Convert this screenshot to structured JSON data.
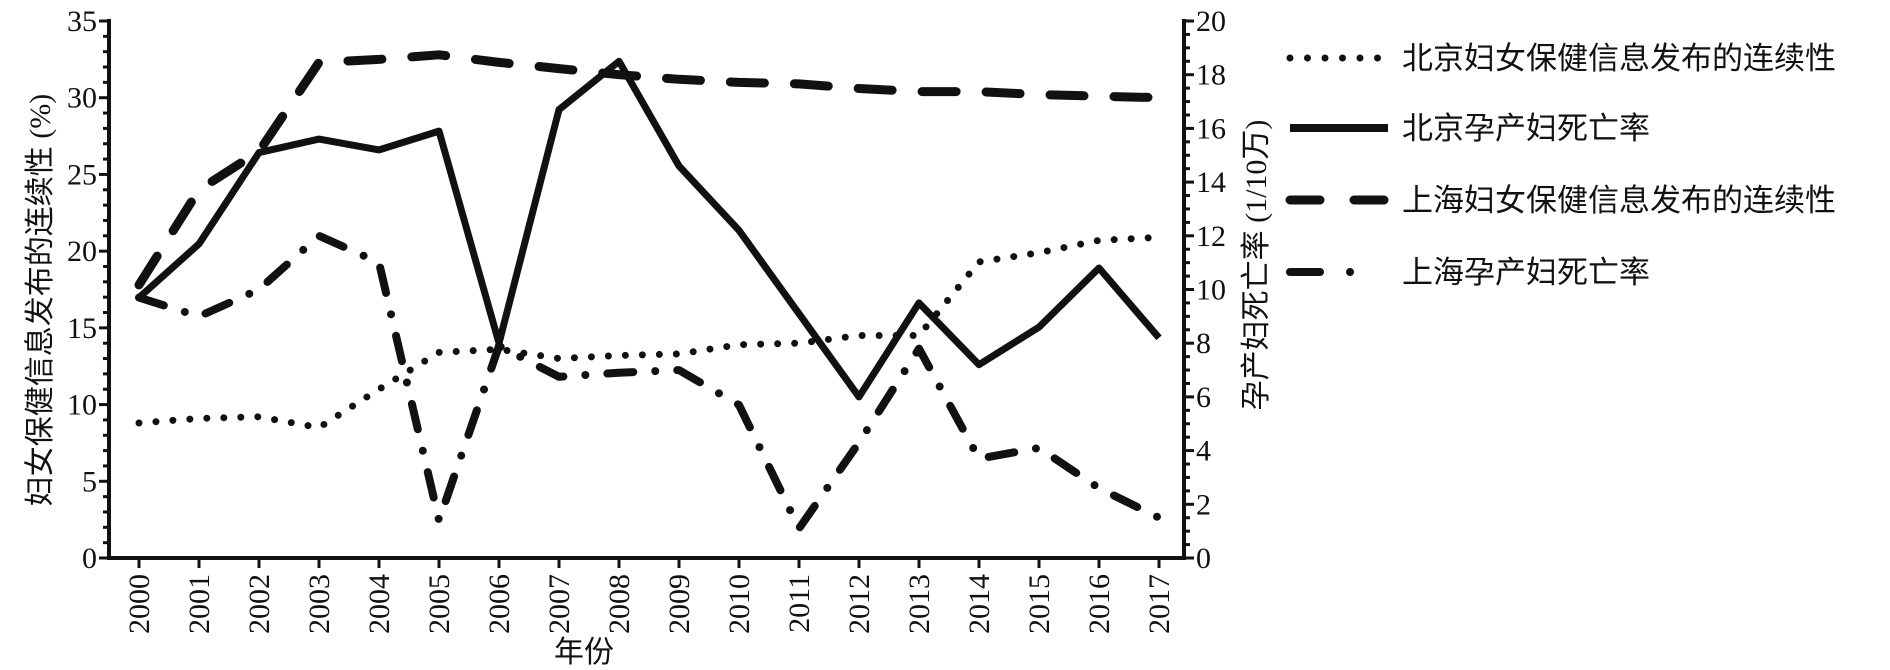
{
  "chart_data": {
    "type": "line",
    "xlabel": "年份",
    "ylabel_left": "妇女保健信息发布的连续性 (%)",
    "ylabel_right": "孕产妇死亡率 (1/10万)",
    "ylim_left": [
      0,
      35
    ],
    "ylim_right": [
      0,
      20
    ],
    "yticks_left": [
      0,
      5,
      10,
      15,
      20,
      25,
      30,
      35
    ],
    "yticks_right": [
      0,
      2,
      4,
      6,
      8,
      10,
      12,
      14,
      16,
      18,
      20
    ],
    "grid": false,
    "legend_placement": "right-top",
    "categories": [
      "2000",
      "2001",
      "2002",
      "2003",
      "2004",
      "2005",
      "2006",
      "2007",
      "2008",
      "2009",
      "2010",
      "2011",
      "2012",
      "2013",
      "2014",
      "2015",
      "2016",
      "2017"
    ],
    "series": [
      {
        "name": "北京妇女保健信息发布的连续性",
        "axis": "left",
        "style": "dotted",
        "values": [
          8.8,
          9.1,
          9.2,
          8.5,
          11.0,
          13.4,
          13.6,
          13.0,
          13.2,
          13.3,
          13.9,
          14.0,
          14.5,
          14.5,
          19.3,
          19.9,
          20.7,
          20.9
        ]
      },
      {
        "name": "北京孕产妇死亡率",
        "axis": "right",
        "style": "solid",
        "values": [
          9.7,
          11.7,
          15.1,
          15.6,
          15.2,
          15.9,
          8.0,
          16.7,
          18.5,
          14.6,
          12.2,
          9.1,
          6.0,
          9.5,
          7.2,
          8.6,
          10.8,
          8.2
        ]
      },
      {
        "name": "上海妇女保健信息发布的连续性",
        "axis": "left",
        "style": "dashed",
        "values": [
          17.8,
          24.0,
          26.5,
          32.3,
          32.5,
          32.8,
          32.3,
          31.9,
          31.5,
          31.2,
          31.0,
          30.9,
          30.6,
          30.4,
          30.4,
          30.2,
          30.1,
          30.0
        ]
      },
      {
        "name": "上海孕产妇死亡率",
        "axis": "right",
        "style": "dash-dot",
        "values": [
          9.7,
          9.0,
          10.0,
          12.0,
          11.0,
          1.4,
          7.9,
          6.75,
          6.9,
          7.0,
          5.7,
          1.1,
          4.3,
          7.8,
          3.7,
          4.1,
          2.6,
          1.5
        ]
      }
    ]
  },
  "colors": {
    "line": "#111111",
    "background": "#ffffff"
  }
}
